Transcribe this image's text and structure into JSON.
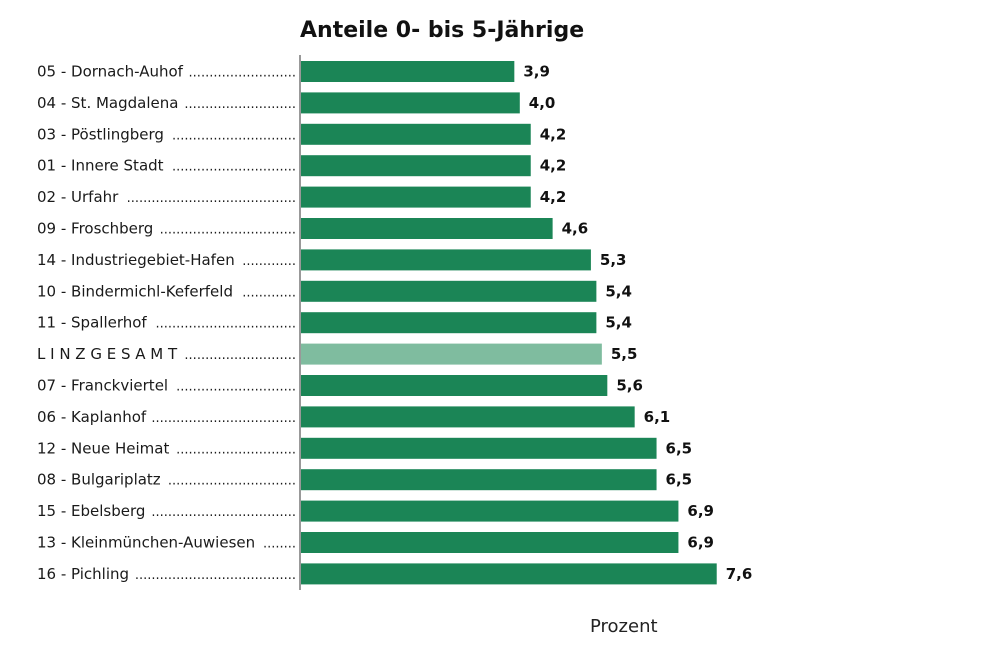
{
  "colors": {
    "bar": "#1b8556",
    "highlight_bar": "#7fbc9f",
    "axis": "#333333",
    "text": "#1a1a1a"
  },
  "chart_data": {
    "type": "bar",
    "orientation": "horizontal",
    "title": "Anteile 0- bis 5-Jährige",
    "xlabel": "Prozent",
    "ylabel": "",
    "xlim": [
      0,
      8.5
    ],
    "grid": false,
    "legend": "none",
    "highlight": "L I N Z   G E S A M T",
    "categories": [
      "05 - Dornach-Auhof",
      "04 - St. Magdalena",
      "03 - Pöstlingberg",
      "01 - Innere Stadt",
      "02 - Urfahr",
      "09 - Froschberg",
      "14 - Industriegebiet-Hafen",
      "10 - Bindermichl-Keferfeld",
      "11 - Spallerhof",
      "L I N Z   G E S A M T",
      "07 - Franckviertel",
      "06 - Kaplanhof",
      "12 - Neue Heimat",
      "08 - Bulgariplatz",
      "15 - Ebelsberg",
      "13 - Kleinmünchen-Auwiesen",
      "16 - Pichling"
    ],
    "values": [
      3.9,
      4.0,
      4.2,
      4.2,
      4.2,
      4.6,
      5.3,
      5.4,
      5.4,
      5.5,
      5.6,
      6.1,
      6.5,
      6.5,
      6.9,
      6.9,
      7.6
    ],
    "value_labels": [
      "3,9",
      "4,0",
      "4,2",
      "4,2",
      "4,2",
      "4,6",
      "5,3",
      "5,4",
      "5,4",
      "5,5",
      "5,6",
      "6,1",
      "6,5",
      "6,5",
      "6,9",
      "6,9",
      "7,6"
    ]
  }
}
